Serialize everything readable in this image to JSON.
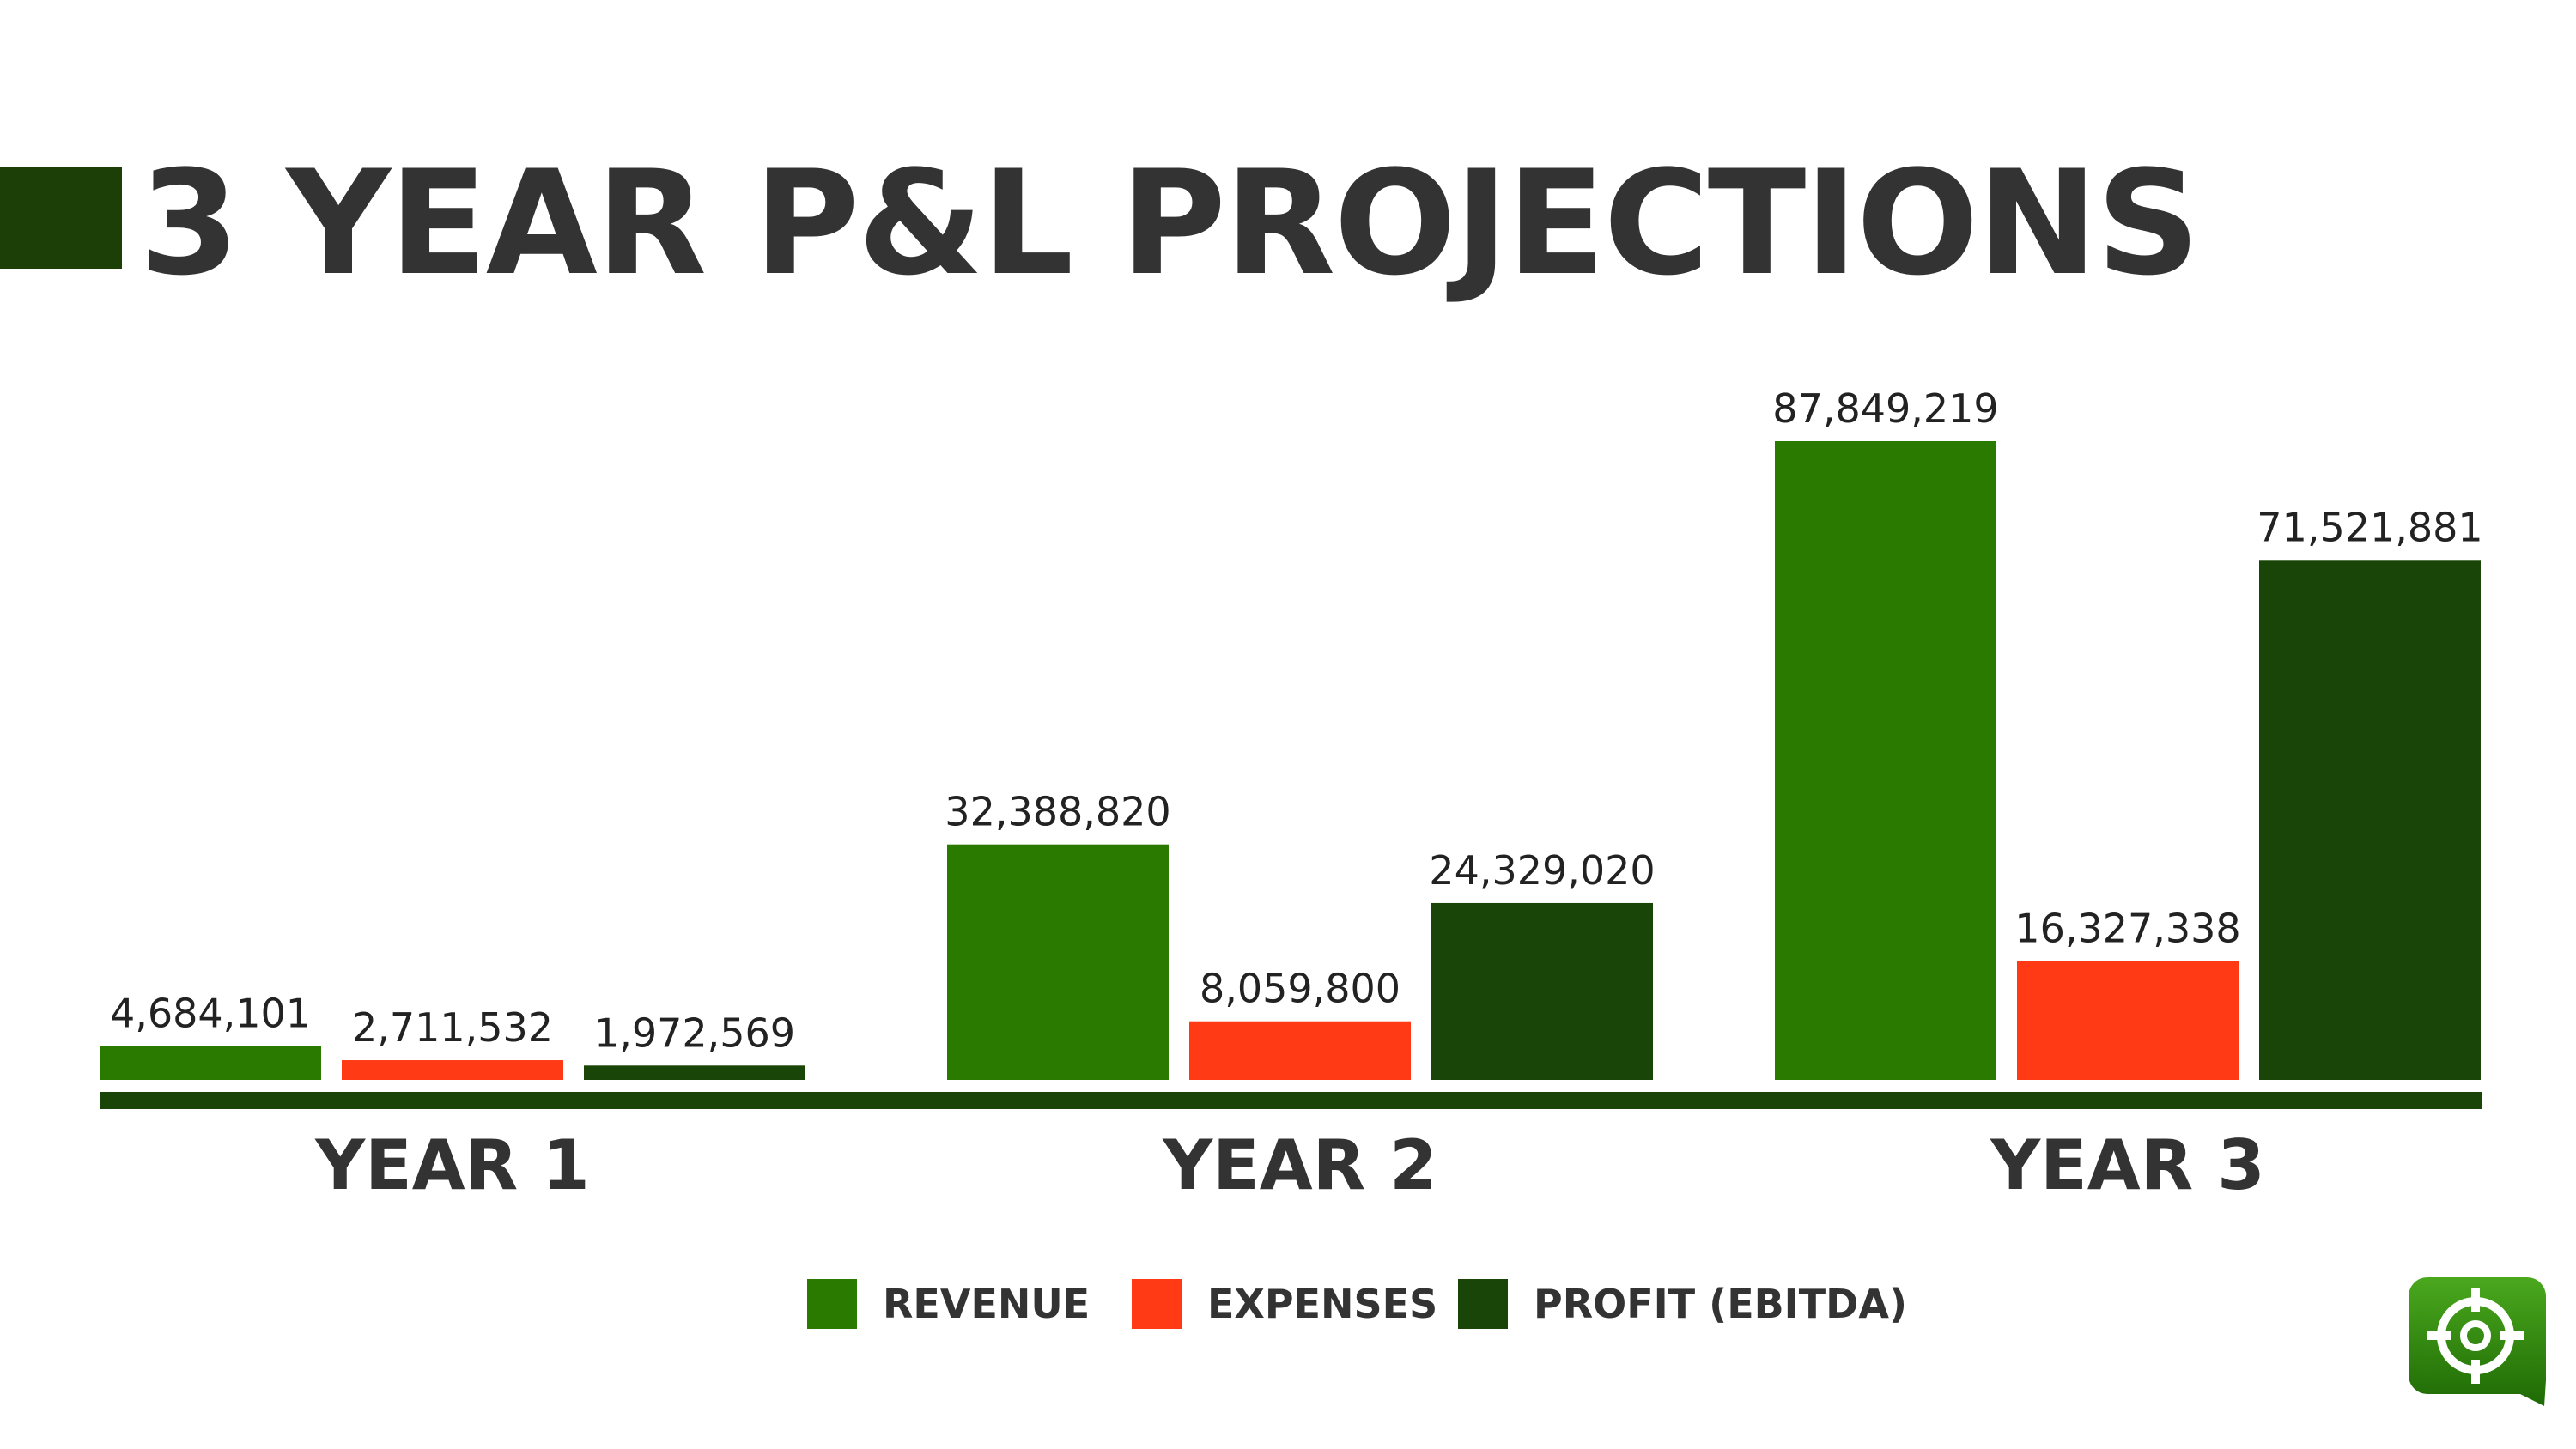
{
  "title": "3 YEAR P&L PROJECTIONS",
  "colors": {
    "accent_block": "#1c3f08",
    "revenue": "#2a7a00",
    "expenses": "#ff3a14",
    "profit": "#1a4508",
    "baseline": "#1a4508",
    "text": "#333333",
    "label_text": "#222222"
  },
  "chart_data": {
    "type": "bar",
    "categories": [
      "YEAR 1",
      "YEAR 2",
      "YEAR 3"
    ],
    "series": [
      {
        "name": "REVENUE",
        "values": [
          4684101,
          32388820,
          87849219
        ],
        "labels": [
          "4,684,101",
          "32,388,820",
          "87,849,219"
        ],
        "color": "#2a7a00"
      },
      {
        "name": "EXPENSES",
        "values": [
          2711532,
          8059800,
          16327338
        ],
        "labels": [
          "2,711,532",
          "8,059,800",
          "16,327,338"
        ],
        "color": "#ff3a14"
      },
      {
        "name": "PROFIT (EBITDA)",
        "values": [
          1972569,
          24329020,
          71521881
        ],
        "labels": [
          "1,972,569",
          "24,329,020",
          "71,521,881"
        ],
        "color": "#1a4508"
      }
    ],
    "ylim": [
      0,
      87849219
    ],
    "grid": false,
    "legend_position": "bottom",
    "data_labels": true
  },
  "legend": [
    {
      "label": "REVENUE",
      "color": "#2a7a00"
    },
    {
      "label": "EXPENSES",
      "color": "#ff3a14"
    },
    {
      "label": "PROFIT (EBITDA)",
      "color": "#1a4508"
    }
  ],
  "logo": {
    "icon": "crosshair-chat-icon"
  }
}
